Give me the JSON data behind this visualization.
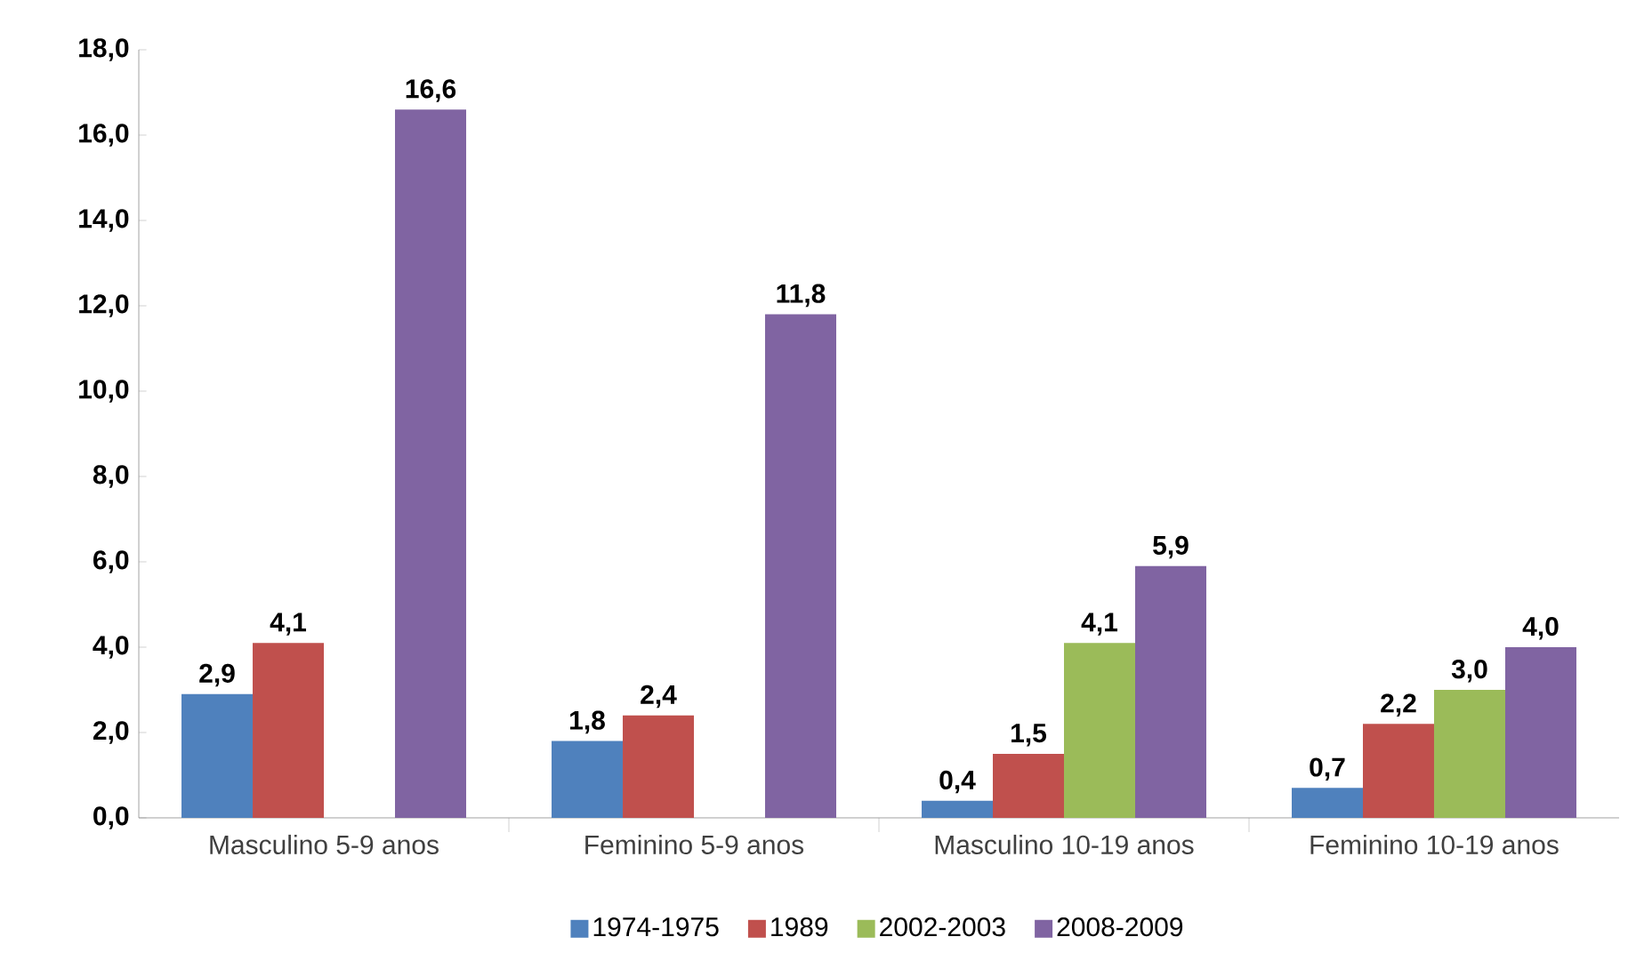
{
  "chart_data": {
    "type": "bar",
    "categories": [
      "Masculino 5-9 anos",
      "Feminino 5-9 anos",
      "Masculino 10-19 anos",
      "Feminino 10-19 anos"
    ],
    "series": [
      {
        "name": "1974-1975",
        "color": "#4f81bd",
        "values": [
          2.9,
          1.8,
          0.4,
          0.7
        ],
        "value_labels": [
          "2,9",
          "1,8",
          "0,4",
          "0,7"
        ]
      },
      {
        "name": "1989",
        "color": "#c0504d",
        "values": [
          4.1,
          2.4,
          1.5,
          2.2
        ],
        "value_labels": [
          "4,1",
          "2,4",
          "1,5",
          "2,2"
        ]
      },
      {
        "name": "2002-2003",
        "color": "#9bbb59",
        "values": [
          null,
          null,
          4.1,
          3.0
        ],
        "value_labels": [
          null,
          null,
          "4,1",
          "3,0"
        ]
      },
      {
        "name": "2008-2009",
        "color": "#8064a2",
        "values": [
          16.6,
          11.8,
          5.9,
          4.0
        ],
        "value_labels": [
          "16,6",
          "11,8",
          "5,9",
          "4,0"
        ]
      }
    ],
    "ylim": [
      0,
      18
    ],
    "yticks": [
      {
        "value": 0,
        "label": "0,0"
      },
      {
        "value": 2,
        "label": "2,0"
      },
      {
        "value": 4,
        "label": "4,0"
      },
      {
        "value": 6,
        "label": "6,0"
      },
      {
        "value": 8,
        "label": "8,0"
      },
      {
        "value": 10,
        "label": "10,0"
      },
      {
        "value": 12,
        "label": "12,0"
      },
      {
        "value": 14,
        "label": "14,0"
      },
      {
        "value": 16,
        "label": "16,0"
      },
      {
        "value": 18,
        "label": "18,0"
      }
    ],
    "grid": false,
    "legend": "bottom"
  }
}
